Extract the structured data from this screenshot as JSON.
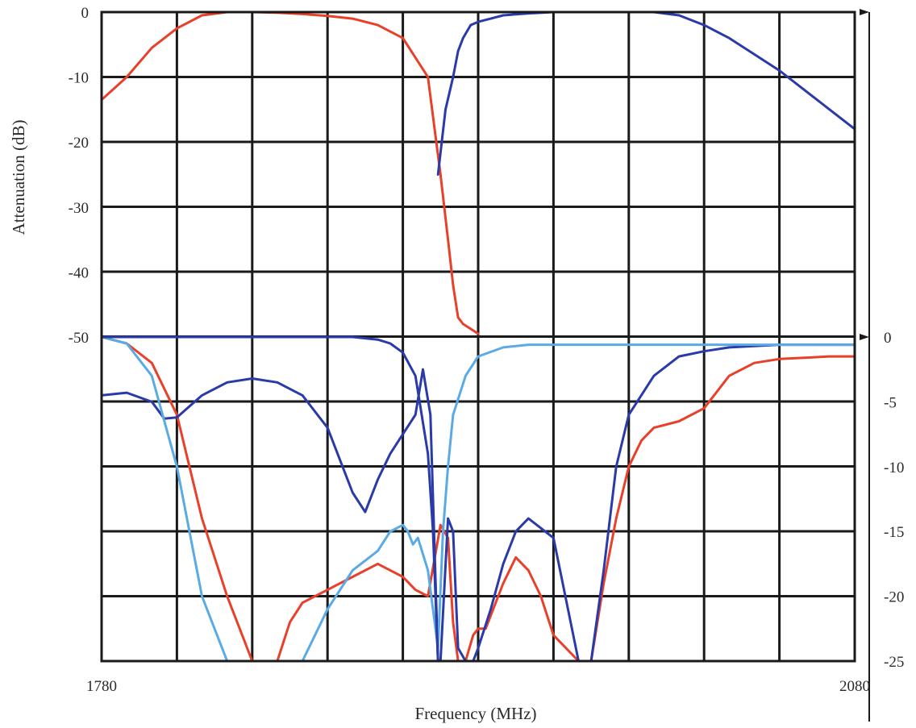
{
  "chart_data": {
    "type": "line",
    "xlabel": "Frequency (MHz)",
    "ylabel": "Attenuation (dB)",
    "xlim": [
      1780,
      2080
    ],
    "x_tick_labels": [
      "1780",
      "2080"
    ],
    "left_axis": {
      "ylim": [
        -50,
        0
      ],
      "tick_labels": [
        "0",
        "-10",
        "-20",
        "-30",
        "-40",
        "-50"
      ]
    },
    "right_axis": {
      "ylim": [
        -25,
        0
      ],
      "tick_labels": [
        "0",
        "-5",
        "-10",
        "-15",
        "-20",
        "-25"
      ]
    },
    "grid": true,
    "series": [
      {
        "axis": "left",
        "color": "#e8402a",
        "x": [
          1780,
          1790,
          1800,
          1810,
          1820,
          1830,
          1840,
          1850,
          1860,
          1870,
          1880,
          1890,
          1900,
          1910,
          1915,
          1918,
          1920,
          1922,
          1924,
          1926,
          1928,
          1930
        ],
        "y": [
          -13.5,
          -10,
          -5.5,
          -2.5,
          -0.5,
          0,
          0,
          -0.1,
          -0.3,
          -0.6,
          -1,
          -2,
          -4,
          -10,
          -25,
          -35,
          -42,
          -47,
          -48,
          -48.5,
          -49,
          -49.5
        ]
      },
      {
        "axis": "left",
        "color": "#2a3aa8",
        "x": [
          1914,
          1917,
          1920,
          1922,
          1924,
          1927,
          1930,
          1935,
          1940,
          1950,
          1960,
          1970,
          1980,
          1990,
          2000,
          2010,
          2020,
          2030,
          2040,
          2050,
          2060,
          2070,
          2080
        ],
        "y": [
          -25,
          -15,
          -10,
          -6,
          -4,
          -2,
          -1.5,
          -1,
          -0.5,
          -0.2,
          0,
          0,
          0,
          0,
          0,
          -0.5,
          -2,
          -4,
          -6.5,
          -9,
          -12,
          -15,
          -18
        ]
      },
      {
        "axis": "right",
        "color": "#e8402a",
        "x": [
          1780,
          1790,
          1800,
          1810,
          1820,
          1830,
          1840,
          1845,
          1850,
          1855,
          1860,
          1870,
          1880,
          1890,
          1895,
          1900,
          1905,
          1910,
          1915,
          1918,
          1920,
          1922,
          1925,
          1928,
          1930,
          1933,
          1940,
          1945,
          1950,
          1955,
          1960,
          1970,
          1975,
          1980,
          1985,
          1990,
          1995,
          2000,
          2010,
          2020,
          2030,
          2040,
          2050,
          2060,
          2070,
          2080
        ],
        "y": [
          0,
          -0.5,
          -2,
          -6,
          -14,
          -20,
          -25,
          -25,
          -25,
          -22,
          -20.5,
          -19.5,
          -18.5,
          -17.5,
          -18,
          -18.5,
          -19.5,
          -20,
          -14.5,
          -15.5,
          -22,
          -25,
          -25,
          -23,
          -22.5,
          -22.5,
          -19,
          -17,
          -18,
          -20,
          -23,
          -25,
          -25,
          -19,
          -14,
          -10,
          -8,
          -7,
          -6.5,
          -5.5,
          -3,
          -2,
          -1.7,
          -1.6,
          -1.5,
          -1.5
        ]
      },
      {
        "axis": "right",
        "color": "#2a3aa8",
        "x": [
          1780,
          1790,
          1800,
          1805,
          1810,
          1820,
          1830,
          1840,
          1850,
          1860,
          1870,
          1880,
          1885,
          1890,
          1895,
          1900,
          1905,
          1908,
          1911,
          1914,
          1915,
          1918,
          1920,
          1922,
          1925,
          1928,
          1930,
          1935,
          1940,
          1945,
          1950,
          1960,
          1970,
          1975,
          1980,
          1985,
          1990,
          2000,
          2010,
          2020,
          2030,
          2040,
          2050,
          2060,
          2070,
          2080
        ],
        "y": [
          -4.5,
          -4.3,
          -5,
          -6.3,
          -6.2,
          -4.5,
          -3.5,
          -3.2,
          -3.5,
          -4.5,
          -7,
          -12,
          -13.5,
          -11,
          -9,
          -7.5,
          -6,
          -2.5,
          -6,
          -25,
          -25,
          -14,
          -15,
          -24,
          -25,
          -25,
          -24,
          -21,
          -17.5,
          -15,
          -14,
          -15.5,
          -25,
          -25,
          -18,
          -10,
          -6,
          -3,
          -1.5,
          -1.1,
          -0.8,
          -0.7,
          -0.6,
          -0.6,
          -0.6,
          -0.6
        ]
      },
      {
        "axis": "right",
        "color": "#5aaae6",
        "x": [
          1780,
          1790,
          1800,
          1810,
          1820,
          1830,
          1840,
          1850,
          1855,
          1860,
          1870,
          1880,
          1890,
          1895,
          1900,
          1902,
          1904,
          1906,
          1910,
          1914,
          1916,
          1918,
          1920,
          1925,
          1930,
          1940,
          1950,
          1960,
          1970,
          1980,
          1990,
          2000,
          2010,
          2020,
          2030,
          2040,
          2050,
          2060,
          2070,
          2080
        ],
        "y": [
          0,
          -0.5,
          -3,
          -10,
          -20,
          -25,
          -25,
          -25,
          -25,
          -25,
          -21,
          -18,
          -16.5,
          -15,
          -14.5,
          -15,
          -16,
          -15.5,
          -18,
          -24,
          -15,
          -10,
          -6,
          -3,
          -1.5,
          -0.8,
          -0.6,
          -0.6,
          -0.6,
          -0.6,
          -0.6,
          -0.6,
          -0.6,
          -0.6,
          -0.6,
          -0.6,
          -0.6,
          -0.6,
          -0.6,
          -0.6
        ]
      },
      {
        "axis": "right",
        "color": "#2a3aa8",
        "x": [
          1780,
          1800,
          1820,
          1840,
          1860,
          1880,
          1890,
          1895,
          1900,
          1905,
          1910,
          1912,
          1914
        ],
        "y": [
          0,
          0,
          0,
          0,
          0,
          0,
          -0.2,
          -0.5,
          -1.2,
          -3,
          -9,
          -15,
          -25
        ]
      }
    ]
  }
}
